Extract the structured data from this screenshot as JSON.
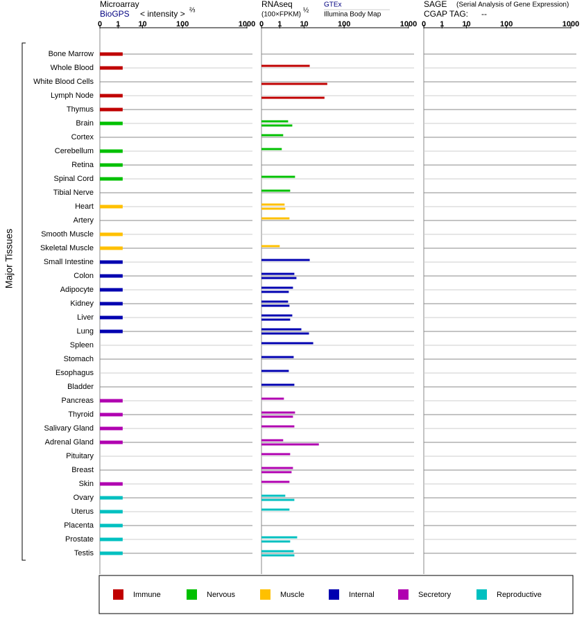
{
  "chart_data": {
    "type": "bar",
    "y_label": "Major Tissues",
    "groups": [
      {
        "name": "Immune",
        "color": "#c00000"
      },
      {
        "name": "Nervous",
        "color": "#00c000"
      },
      {
        "name": "Muscle",
        "color": "#ffc000"
      },
      {
        "name": "Internal",
        "color": "#0000b0"
      },
      {
        "name": "Secretory",
        "color": "#b000b0"
      },
      {
        "name": "Reproductive",
        "color": "#00c0c0"
      }
    ],
    "categories": [
      "Bone Marrow",
      "Whole Blood",
      "White Blood Cells",
      "Lymph Node",
      "Thymus",
      "Brain",
      "Cortex",
      "Cerebellum",
      "Retina",
      "Spinal Cord",
      "Tibial Nerve",
      "Heart",
      "Artery",
      "Smooth Muscle",
      "Skeletal Muscle",
      "Small Intestine",
      "Colon",
      "Adipocyte",
      "Kidney",
      "Liver",
      "Lung",
      "Spleen",
      "Stomach",
      "Esophagus",
      "Bladder",
      "Pancreas",
      "Thyroid",
      "Salivary Gland",
      "Adrenal Gland",
      "Pituitary",
      "Breast",
      "Skin",
      "Ovary",
      "Uterus",
      "Placenta",
      "Prostate",
      "Testis"
    ],
    "category_groups": [
      0,
      0,
      0,
      0,
      0,
      1,
      1,
      1,
      1,
      1,
      1,
      2,
      2,
      2,
      2,
      3,
      3,
      3,
      3,
      3,
      3,
      3,
      3,
      3,
      3,
      4,
      4,
      4,
      4,
      4,
      4,
      4,
      5,
      5,
      5,
      5,
      5
    ],
    "panels": [
      {
        "title": "Microarray",
        "source": "BioGPS",
        "scale_label": "< intensity >",
        "scale_power": "⅔",
        "xlim": [
          0,
          1000
        ],
        "xticks": [
          0,
          1,
          10,
          100,
          1000
        ],
        "series": [
          {
            "name": "BioGPS",
            "values": [
              1.75,
              1.75,
              null,
              1.75,
              1.75,
              1.75,
              null,
              1.75,
              1.75,
              1.75,
              null,
              1.75,
              null,
              1.75,
              1.75,
              1.75,
              1.75,
              1.75,
              1.75,
              1.75,
              1.75,
              null,
              null,
              null,
              null,
              1.75,
              1.75,
              1.75,
              1.75,
              null,
              null,
              1.75,
              1.75,
              1.75,
              1.75,
              1.75,
              1.75
            ]
          }
        ]
      },
      {
        "title": "RNAseq",
        "scale_label": "(100×FPKM)",
        "scale_power": "½",
        "xlim": [
          0,
          1000
        ],
        "xticks": [
          0,
          1,
          10,
          100,
          1000
        ],
        "series": [
          {
            "name": "GTEx",
            "values": [
              null,
              14,
              null,
              null,
              null,
              2.6,
              1.55,
              1.31,
              null,
              4.83,
              3.15,
              1.81,
              2.95,
              null,
              1.0,
              14,
              4.56,
              4.05,
              2.59,
              3.81,
              8.06,
              17.2,
              4.3,
              2.77,
              4.56,
              1.68,
              4.83,
              4.56,
              1.55,
              3.15,
              4.05,
              2.95,
              1.95,
              2.95,
              null,
              5.76,
              4.3
            ]
          },
          {
            "name": "Illumina Body Map",
            "values": [
              null,
              null,
              38.7,
              33,
              null,
              3.81,
              null,
              null,
              null,
              null,
              null,
              1.95,
              null,
              null,
              null,
              null,
              5.43,
              2.77,
              2.95,
              3.15,
              13.4,
              null,
              null,
              null,
              null,
              null,
              4.05,
              null,
              23.9,
              null,
              3.58,
              null,
              4.56,
              null,
              null,
              3.15,
              4.56
            ]
          }
        ]
      },
      {
        "title": "SAGE",
        "subtitle": "(Serial Analysis of Gene Expression)",
        "source": "CGAP TAG:",
        "tag": "--",
        "xlim": [
          0,
          1000
        ],
        "xticks": [
          0,
          1,
          10,
          100,
          1000
        ],
        "series": []
      }
    ]
  }
}
